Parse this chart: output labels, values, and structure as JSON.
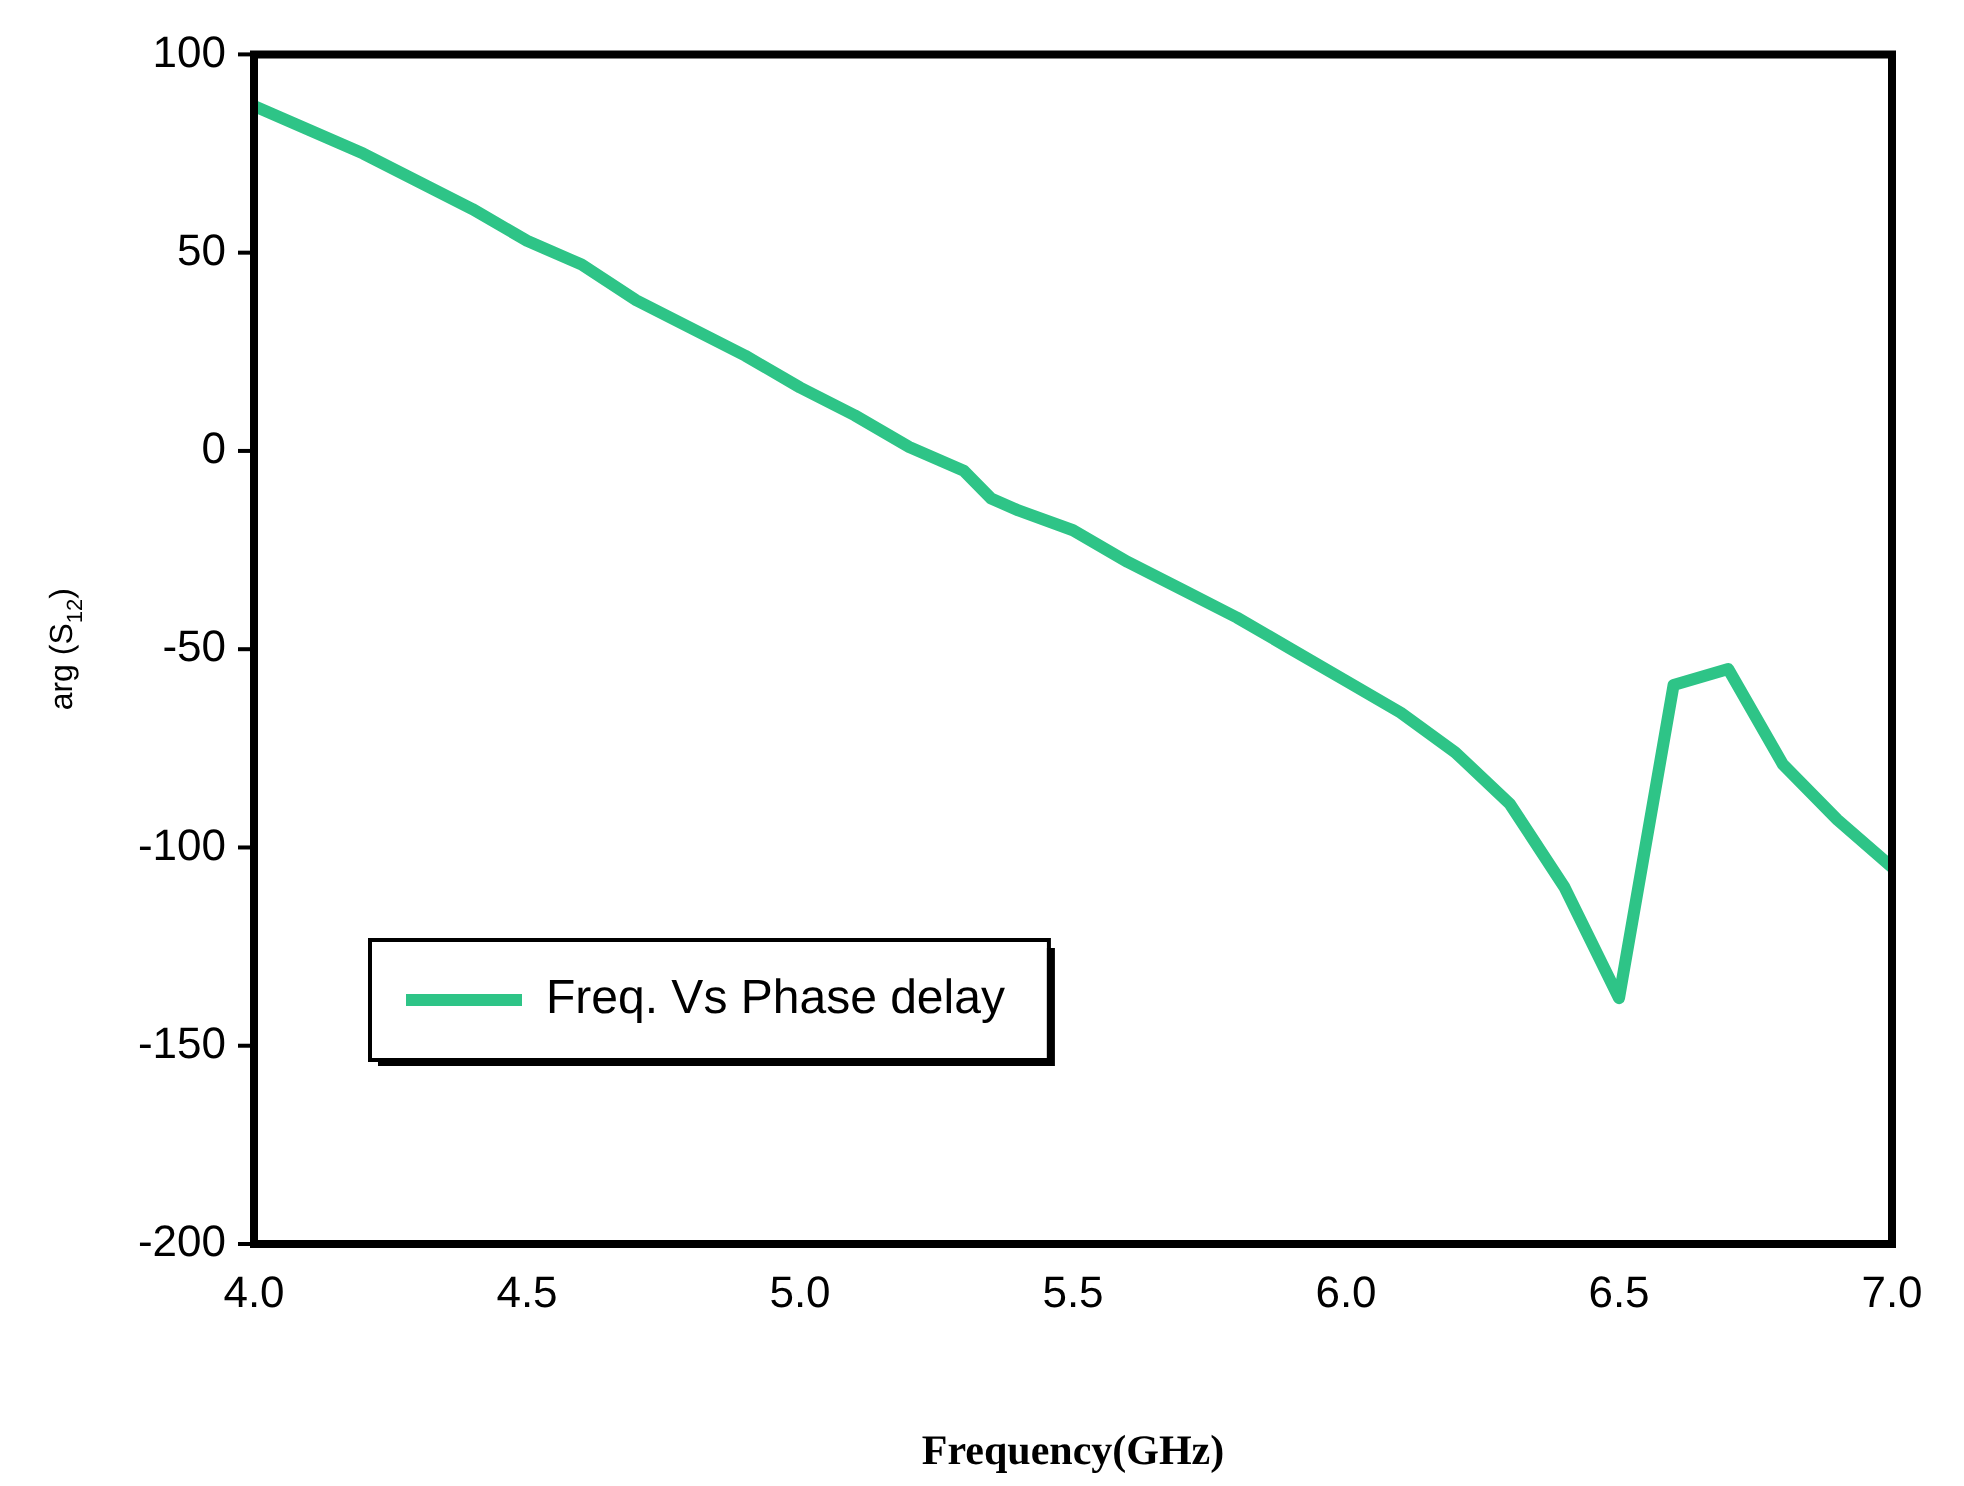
{
  "chart_data": {
    "type": "line",
    "xlabel": "Frequency(GHz)",
    "ylabel": "arg (S$_{12}$)",
    "x": [
      4.0,
      4.1,
      4.2,
      4.3,
      4.4,
      4.5,
      4.6,
      4.7,
      4.8,
      4.9,
      5.0,
      5.1,
      5.2,
      5.3,
      5.35,
      5.4,
      5.5,
      5.6,
      5.7,
      5.8,
      5.9,
      6.0,
      6.1,
      6.2,
      6.3,
      6.4,
      6.5,
      6.6,
      6.7,
      6.8,
      6.9,
      7.0
    ],
    "series": [
      {
        "name": "Freq. Vs Phase delay",
        "color": "#2ec487",
        "values": [
          87,
          81,
          75,
          68,
          61,
          53,
          47,
          38,
          31,
          24,
          16,
          9,
          1,
          -5,
          -12,
          -15,
          -20,
          -28,
          -35,
          -42,
          -50,
          -58,
          -66,
          -76,
          -89,
          -110,
          -138,
          -59,
          -55,
          -79,
          -93,
          -105
        ]
      }
    ],
    "xlim": [
      4.0,
      7.0
    ],
    "xticks": [
      {
        "value": 4.0,
        "label": "4.0"
      },
      {
        "value": 4.5,
        "label": "4.5"
      },
      {
        "value": 5.0,
        "label": "5.0"
      },
      {
        "value": 5.5,
        "label": "5.5"
      },
      {
        "value": 6.0,
        "label": "6.0"
      },
      {
        "value": 6.5,
        "label": "6.5"
      },
      {
        "value": 7.0,
        "label": "7.0"
      }
    ],
    "ylim": [
      -200,
      100
    ],
    "yticks": [
      -200,
      -150,
      -100,
      -50,
      0,
      50,
      100
    ],
    "grid": false,
    "legend": "bottom left",
    "marker": "none",
    "line_style": "solid"
  }
}
